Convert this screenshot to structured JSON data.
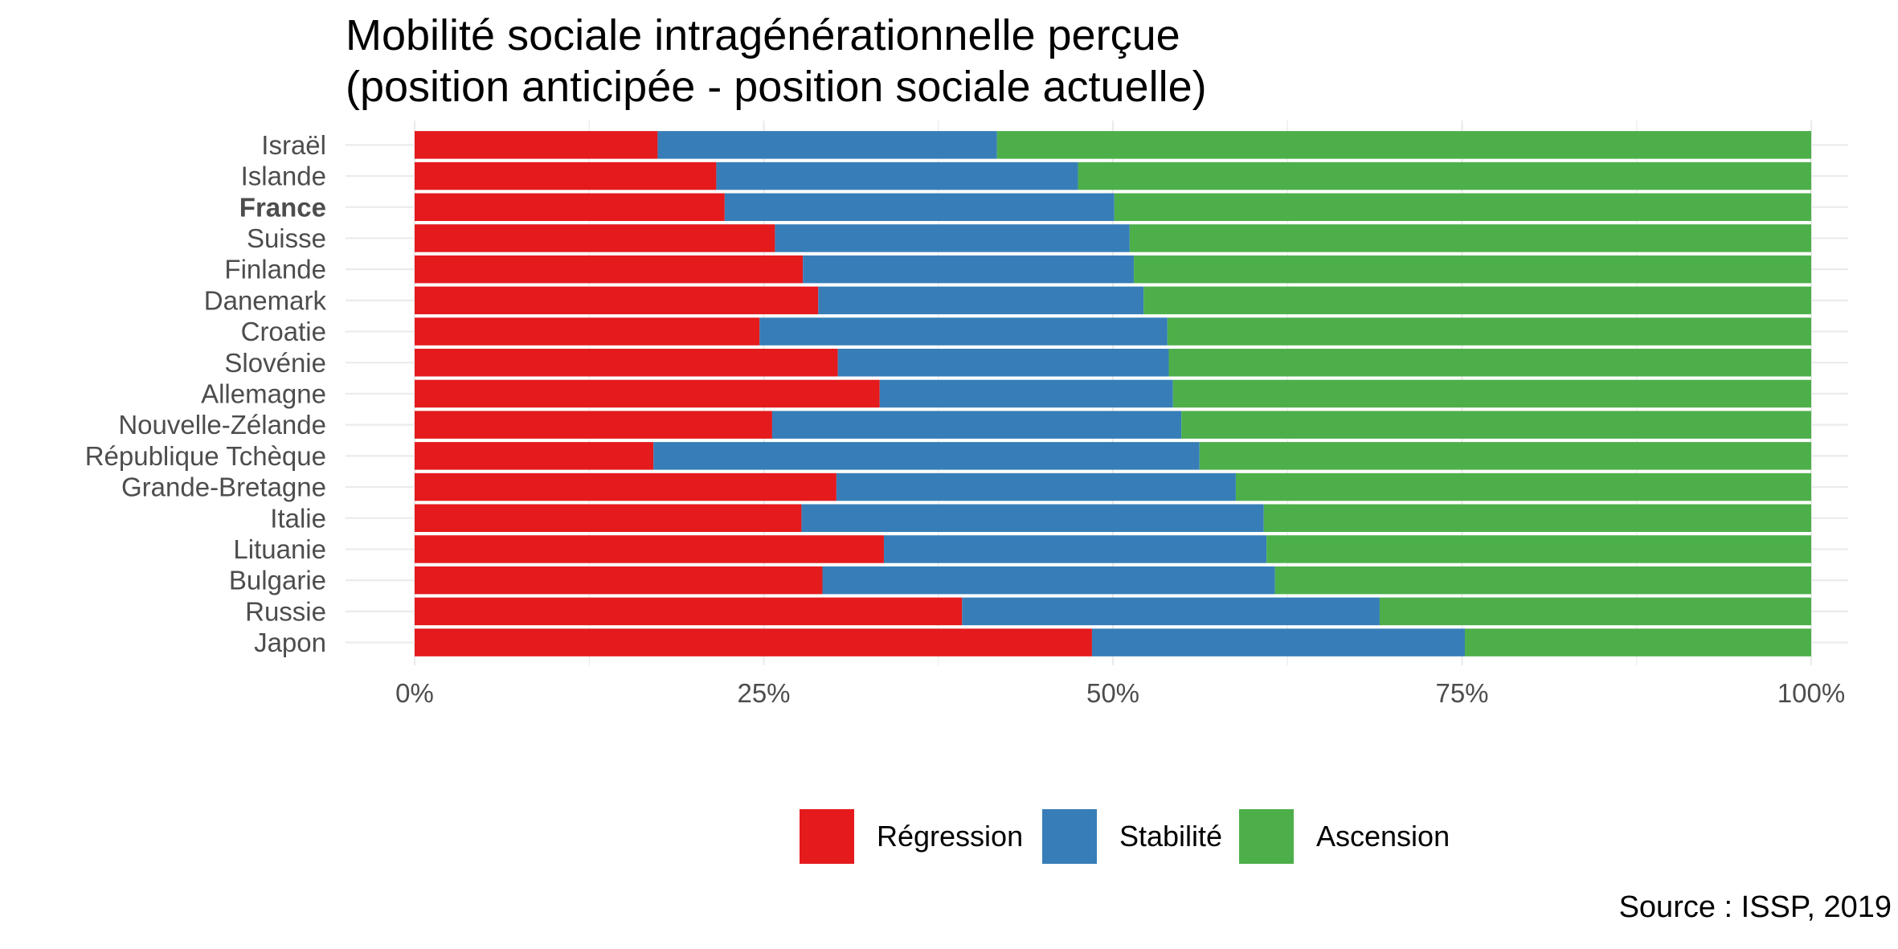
{
  "chart_data": {
    "type": "bar",
    "orientation": "horizontal",
    "stacked": true,
    "title": "Mobilité sociale intragénérationnelle perçue",
    "subtitle": "(position anticipée - position sociale actuelle)",
    "source": "Source : ISSP, 2019",
    "highlight": "France",
    "categories": [
      "Israël",
      "Islande",
      "France",
      "Suisse",
      "Finlande",
      "Danemark",
      "Croatie",
      "Slovénie",
      "Allemagne",
      "Nouvelle-Zélande",
      "République Tchèque",
      "Grande-Bretagne",
      "Italie",
      "Lituanie",
      "Bulgarie",
      "Russie",
      "Japon"
    ],
    "series": [
      {
        "name": "Régression",
        "color": "#E41A1C",
        "values": [
          17.4,
          21.6,
          22.2,
          25.8,
          27.8,
          28.9,
          24.7,
          30.3,
          33.3,
          25.6,
          17.1,
          30.2,
          27.7,
          33.6,
          29.2,
          39.2,
          48.5
        ]
      },
      {
        "name": "Stabilité",
        "color": "#377EB8",
        "values": [
          24.3,
          25.9,
          27.9,
          25.4,
          23.7,
          23.3,
          29.2,
          23.7,
          21.0,
          29.3,
          39.1,
          28.6,
          33.1,
          27.4,
          32.4,
          29.9,
          26.7
        ]
      },
      {
        "name": "Ascension",
        "color": "#4DAF4A",
        "values": [
          58.3,
          52.5,
          49.9,
          48.8,
          48.5,
          47.8,
          46.1,
          46.0,
          45.7,
          45.1,
          43.8,
          41.2,
          39.2,
          39.0,
          38.4,
          30.9,
          24.8
        ]
      }
    ],
    "xlim": [
      0,
      100
    ],
    "xticks": [
      "0%",
      "25%",
      "50%",
      "75%",
      "100%"
    ],
    "legend_position": "bottom",
    "grid": true
  }
}
